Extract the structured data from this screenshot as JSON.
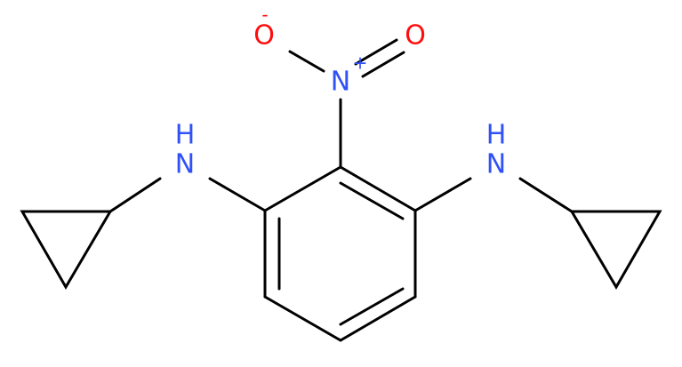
{
  "nitro": {
    "n": "N",
    "n_charge": "+",
    "o_single": "O",
    "o_single_charge": "-",
    "o_double": "O"
  },
  "amines": [
    {
      "n": "N",
      "h": "H"
    },
    {
      "n": "N",
      "h": "H"
    }
  ]
}
